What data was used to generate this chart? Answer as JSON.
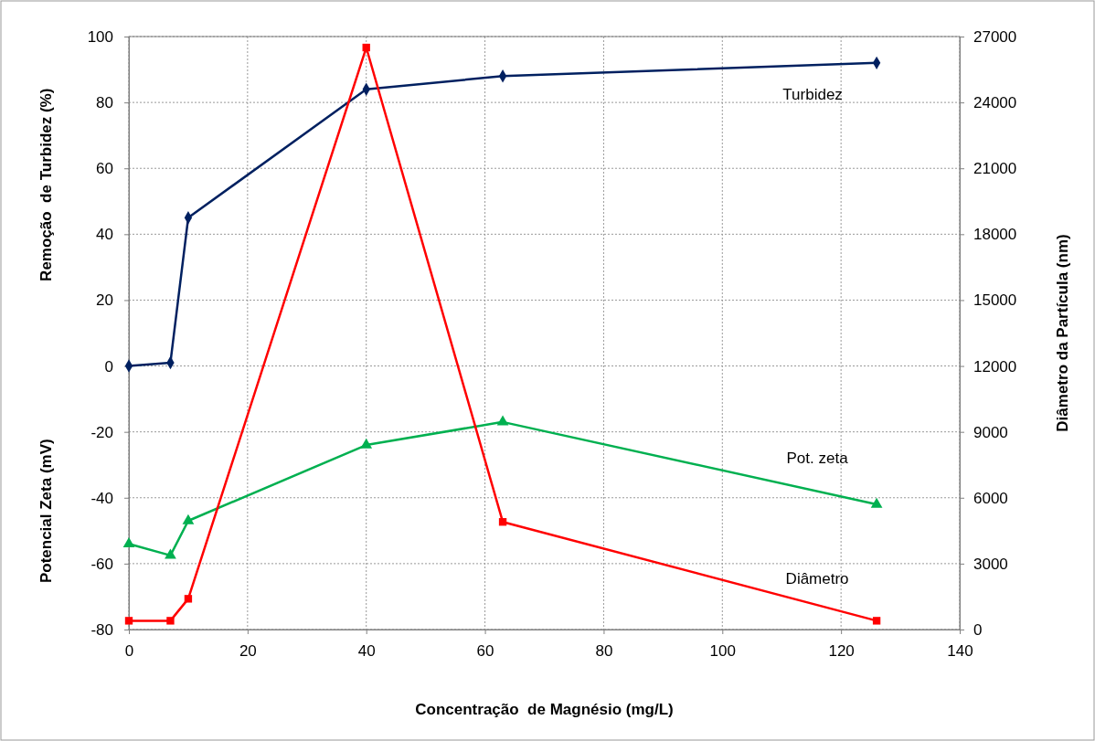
{
  "chart_data": {
    "type": "line",
    "xlabel": "Concentração  de Magnésio (mg/L)",
    "ylabel": "Remoção  de Turbidez (%)",
    "y2label": "Diâmetro da Partícula (nm)",
    "annotations": [
      "Potencial Zeta (mV)"
    ],
    "x": [
      0,
      7,
      10,
      40,
      63,
      126
    ],
    "series": [
      {
        "name": "Turbidez",
        "color": "#002060",
        "marker": "diamond",
        "values": [
          0,
          1,
          45,
          84,
          88,
          92
        ]
      },
      {
        "name": "Pot. zeta",
        "color": "#00b050",
        "marker": "triangle",
        "values": [
          -54,
          -57.5,
          -47,
          -24,
          -17,
          -42
        ]
      },
      {
        "name": "Diâmetro",
        "color": "#ff0000",
        "marker": "square",
        "axis": "y2",
        "values": [
          400,
          400,
          1400,
          26500,
          4900,
          400
        ]
      }
    ],
    "xlim": [
      0,
      140
    ],
    "xticks": [
      0,
      20,
      40,
      60,
      80,
      100,
      120,
      140
    ],
    "ylim": [
      -80,
      100
    ],
    "yticks": [
      -80,
      -60,
      -40,
      -20,
      0,
      20,
      40,
      60,
      80,
      100
    ],
    "y2lim": [
      0,
      27000
    ],
    "y2ticks": [
      0,
      3000,
      6000,
      9000,
      12000,
      15000,
      18000,
      21000,
      24000,
      27000
    ],
    "grid": true,
    "line_style": "solid"
  }
}
